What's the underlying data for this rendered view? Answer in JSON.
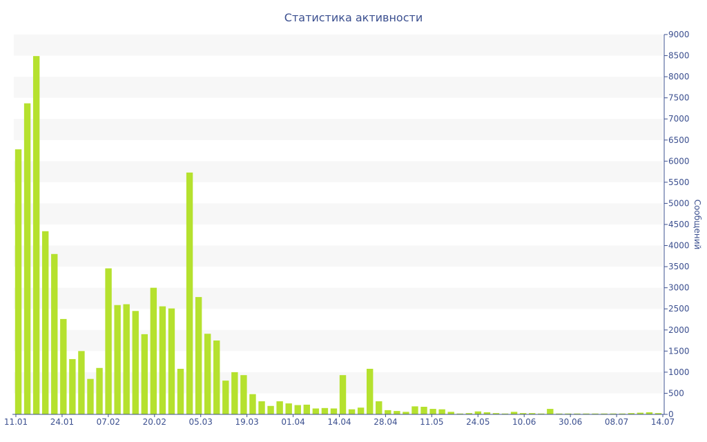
{
  "chart_data": {
    "type": "bar",
    "title": "Статистика активности",
    "xlabel": "",
    "ylabel": "Сообщений",
    "y_axis_side": "right",
    "ylim": [
      0,
      9000
    ],
    "y_ticks": [
      0,
      500,
      1000,
      1500,
      2000,
      2500,
      3000,
      3500,
      4000,
      4500,
      5000,
      5500,
      6000,
      6500,
      7000,
      7500,
      8000,
      8500,
      9000
    ],
    "x_tick_labels": [
      "11.01",
      "24.01",
      "07.02",
      "20.02",
      "05.03",
      "19.03",
      "01.04",
      "14.04",
      "28.04",
      "11.05",
      "24.05",
      "10.06",
      "30.06",
      "08.07",
      "14.07"
    ],
    "bar_color": "#b5e12e",
    "band_color": "#f7f7f7",
    "axis_color": "#3b4f8f",
    "values": [
      6280,
      7370,
      8490,
      4340,
      3800,
      2260,
      1310,
      1500,
      840,
      1100,
      3460,
      2590,
      2610,
      2450,
      1900,
      3000,
      2560,
      2510,
      1080,
      5730,
      2780,
      1910,
      1750,
      800,
      1000,
      930,
      480,
      310,
      200,
      310,
      260,
      220,
      230,
      140,
      150,
      140,
      930,
      120,
      160,
      1080,
      310,
      100,
      80,
      60,
      190,
      180,
      130,
      120,
      60,
      20,
      30,
      70,
      50,
      30,
      20,
      60,
      30,
      30,
      20,
      130,
      20,
      20,
      20,
      20,
      20,
      20,
      20,
      20,
      30,
      40,
      50,
      30
    ]
  }
}
